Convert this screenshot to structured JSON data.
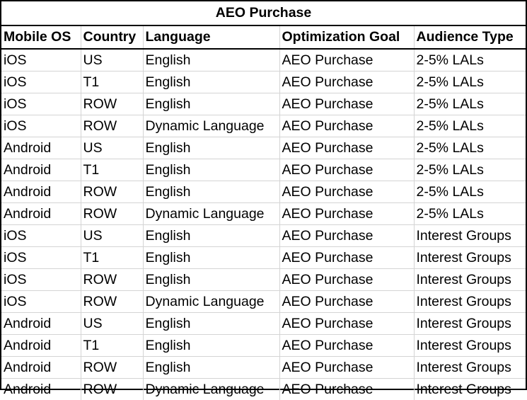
{
  "title": "AEO Purchase",
  "columns": [
    "Mobile OS",
    "Country",
    "Language",
    "Optimization Goal",
    "Audience Type"
  ],
  "rows": [
    [
      "iOS",
      "US",
      "English",
      "AEO Purchase",
      "2-5% LALs"
    ],
    [
      "iOS",
      "T1",
      "English",
      "AEO Purchase",
      "2-5% LALs"
    ],
    [
      "iOS",
      "ROW",
      "English",
      "AEO Purchase",
      "2-5% LALs"
    ],
    [
      "iOS",
      "ROW",
      "Dynamic Language",
      "AEO Purchase",
      "2-5% LALs"
    ],
    [
      "Android",
      "US",
      "English",
      "AEO Purchase",
      "2-5% LALs"
    ],
    [
      "Android",
      "T1",
      "English",
      "AEO Purchase",
      "2-5% LALs"
    ],
    [
      "Android",
      "ROW",
      "English",
      "AEO Purchase",
      "2-5% LALs"
    ],
    [
      "Android",
      "ROW",
      "Dynamic Language",
      "AEO Purchase",
      "2-5% LALs"
    ],
    [
      "iOS",
      "US",
      "English",
      "AEO Purchase",
      "Interest Groups"
    ],
    [
      "iOS",
      "T1",
      "English",
      "AEO Purchase",
      "Interest Groups"
    ],
    [
      "iOS",
      "ROW",
      "English",
      "AEO Purchase",
      "Interest Groups"
    ],
    [
      "iOS",
      "ROW",
      "Dynamic Language",
      "AEO Purchase",
      "Interest Groups"
    ],
    [
      "Android",
      "US",
      "English",
      "AEO Purchase",
      "Interest Groups"
    ],
    [
      "Android",
      "T1",
      "English",
      "AEO Purchase",
      "Interest Groups"
    ],
    [
      "Android",
      "ROW",
      "English",
      "AEO Purchase",
      "Interest Groups"
    ],
    [
      "Android",
      "ROW",
      "Dynamic Language",
      "AEO Purchase",
      "Interest Groups"
    ]
  ]
}
